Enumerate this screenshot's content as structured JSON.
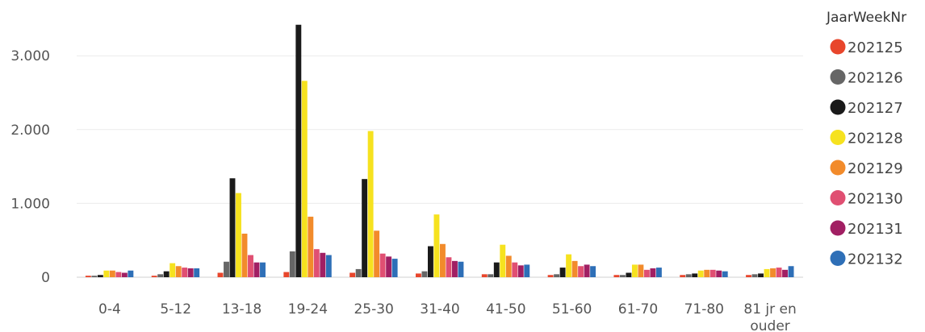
{
  "chart_data": {
    "type": "bar",
    "legend_title": "JaarWeekNr",
    "legend_position": "right",
    "grid": true,
    "ylim": [
      0,
      3400
    ],
    "yticks": [
      0,
      1000,
      2000,
      3000
    ],
    "ytick_labels": [
      "0",
      "1.000",
      "2.000",
      "3.000"
    ],
    "categories": [
      "0-4",
      "5-12",
      "13-18",
      "19-24",
      "25-30",
      "31-40",
      "41-50",
      "51-60",
      "61-70",
      "71-80",
      "81 jr en ouder"
    ],
    "category_lines": [
      [
        "0-4"
      ],
      [
        "5-12"
      ],
      [
        "13-18"
      ],
      [
        "19-24"
      ],
      [
        "25-30"
      ],
      [
        "31-40"
      ],
      [
        "41-50"
      ],
      [
        "51-60"
      ],
      [
        "61-70"
      ],
      [
        "71-80"
      ],
      [
        "81 jr en",
        "ouder"
      ]
    ],
    "series": [
      {
        "name": "202125",
        "color": "#e8462c",
        "values": [
          20,
          20,
          60,
          70,
          60,
          50,
          40,
          30,
          30,
          30,
          30
        ]
      },
      {
        "name": "202126",
        "color": "#666666",
        "values": [
          20,
          40,
          210,
          350,
          110,
          80,
          40,
          40,
          30,
          40,
          40
        ]
      },
      {
        "name": "202127",
        "color": "#1a1a1a",
        "values": [
          30,
          80,
          1340,
          3420,
          1330,
          420,
          200,
          130,
          60,
          50,
          50
        ]
      },
      {
        "name": "202128",
        "color": "#f6e21f",
        "values": [
          90,
          190,
          1140,
          2660,
          1980,
          850,
          440,
          310,
          170,
          90,
          110
        ]
      },
      {
        "name": "202129",
        "color": "#f28b2b",
        "values": [
          90,
          150,
          590,
          820,
          630,
          450,
          290,
          220,
          170,
          100,
          120
        ]
      },
      {
        "name": "202130",
        "color": "#e04f72",
        "values": [
          70,
          130,
          300,
          380,
          320,
          270,
          200,
          150,
          100,
          100,
          130
        ]
      },
      {
        "name": "202131",
        "color": "#a11f63",
        "values": [
          60,
          120,
          200,
          330,
          280,
          220,
          160,
          170,
          120,
          90,
          100
        ]
      },
      {
        "name": "202132",
        "color": "#2e6fb7",
        "values": [
          90,
          120,
          200,
          300,
          250,
          210,
          170,
          150,
          130,
          80,
          150
        ]
      }
    ]
  }
}
